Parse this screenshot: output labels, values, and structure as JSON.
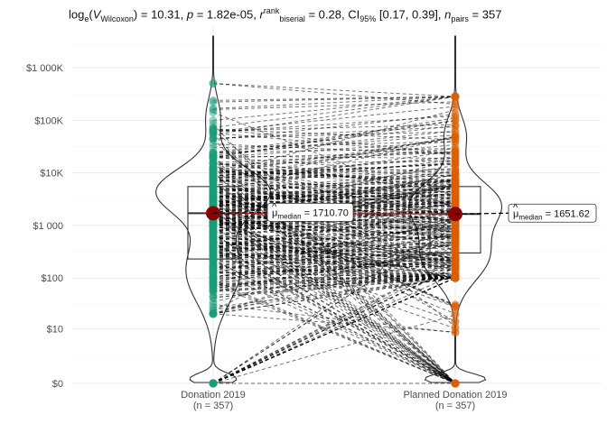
{
  "title_parts": {
    "stat_fn": "log",
    "stat_fn_sub": "e",
    "stat_var": "V",
    "stat_var_sub": "Wilcoxon",
    "stat_value": "10.31",
    "p_label": "p",
    "p_value": "1.82e-05",
    "effect_label": "r",
    "effect_sup": "rank",
    "effect_sub": "biserial",
    "effect_value": "0.28",
    "ci_label": "CI",
    "ci_sub": "95%",
    "ci_value": "[0.17, 0.39]",
    "n_label": "n",
    "n_sub": "pairs",
    "n_value": "357"
  },
  "chart_data": {
    "type": "paired violin-box-scatter",
    "y_scale": "pseudo-log",
    "y_ticks": [
      {
        "value": 0,
        "label": "$0"
      },
      {
        "value": 10,
        "label": "$10"
      },
      {
        "value": 100,
        "label": "$100"
      },
      {
        "value": 1000,
        "label": "$1 000"
      },
      {
        "value": 10000,
        "label": "$10K"
      },
      {
        "value": 100000,
        "label": "$100K"
      },
      {
        "value": 1000000,
        "label": "$1 000K"
      }
    ],
    "groups": [
      {
        "label": "Donation 2019",
        "n_label": "(n = 357)",
        "color": "#1b9e77",
        "box": {
          "q1": 230,
          "median": 1710.7,
          "q3": 5500
        },
        "median_label": "1710.70",
        "whisker_max": 500000
      },
      {
        "label": "Planned Donation 2019",
        "n_label": "(n = 357)",
        "color": "#d95f02",
        "box": {
          "q1": 300,
          "median": 1651.62,
          "q3": 5500
        },
        "median_label": "1651.62",
        "whisker_max": 300000
      }
    ],
    "median_symbol": "μ",
    "median_sub": "median",
    "grid": true
  }
}
